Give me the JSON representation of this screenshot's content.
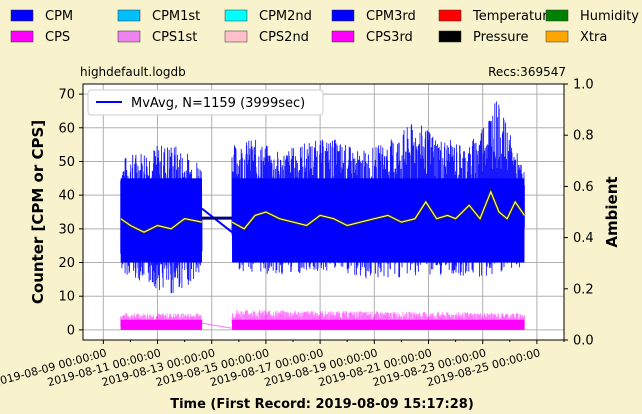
{
  "legend": [
    {
      "label": "CPM",
      "color": "#0000ff"
    },
    {
      "label": "CPM1st",
      "color": "#00bfff"
    },
    {
      "label": "CPM2nd",
      "color": "#00ffff"
    },
    {
      "label": "CPM3rd",
      "color": "#0000ff"
    },
    {
      "label": "Temperature",
      "color": "#ff0000"
    },
    {
      "label": "Humidity",
      "color": "#008000"
    },
    {
      "label": "CPS",
      "color": "#ff00ff"
    },
    {
      "label": "CPS1st",
      "color": "#ee82ee"
    },
    {
      "label": "CPS2nd",
      "color": "#ffc0cb"
    },
    {
      "label": "CPS3rd",
      "color": "#ff00ff"
    },
    {
      "label": "Pressure",
      "color": "#000000"
    },
    {
      "label": "Xtra",
      "color": "#ffa500"
    }
  ],
  "file_label": "highdefault.logdb",
  "recs_label": "Recs:369547",
  "mvavg_legend": "MvAvg, N=1159 (3999sec)",
  "chart_data": {
    "type": "line",
    "xlabel": "Time (First Record: 2019-08-09 15:17:28)",
    "ylabel": "Counter  [CPM or CPS]",
    "ylabel_right": "Ambient",
    "x_ticks": [
      "2019-08-09 00:00:00",
      "2019-08-11 00:00:00",
      "2019-08-13 00:00:00",
      "2019-08-15 00:00:00",
      "2019-08-17 00:00:00",
      "2019-08-19 00:00:00",
      "2019-08-21 00:00:00",
      "2019-08-23 00:00:00",
      "2019-08-25 00:00:00"
    ],
    "x_tick_days": [
      0,
      2,
      4,
      6,
      8,
      10,
      12,
      14,
      16
    ],
    "x_range_days": [
      -0.75,
      17.0
    ],
    "ylim": [
      -3,
      73
    ],
    "y_ticks": [
      0,
      10,
      20,
      30,
      40,
      50,
      60,
      70
    ],
    "ylim_right": [
      0.0,
      1.0
    ],
    "y_ticks_right": [
      "0.0",
      "0.2",
      "0.4",
      "0.6",
      "0.8",
      "1.0"
    ],
    "grid": true,
    "legend_placement": "top-left",
    "segments_days": [
      [
        0.64,
        3.64
      ],
      [
        4.75,
        15.54
      ]
    ],
    "series": [
      {
        "name": "CPM",
        "color": "#0000ff",
        "x_days": [
          0.64,
          1.5,
          2.5,
          3.64,
          4.75,
          5.5,
          6.5,
          7.5,
          8.5,
          9.5,
          10.5,
          11.5,
          12.5,
          13.5,
          14.5,
          15.54
        ],
        "min": [
          17,
          14,
          10,
          16,
          18,
          17,
          16,
          17,
          17,
          15,
          15,
          16,
          16,
          16,
          15,
          19
        ],
        "max": [
          51,
          54,
          56,
          50,
          55,
          57,
          53,
          56,
          57,
          53,
          56,
          62,
          57,
          55,
          69,
          47
        ]
      },
      {
        "name": "CPS",
        "color": "#ff00ff",
        "x_days": [
          0.64,
          3.64,
          4.75,
          15.54
        ],
        "min": [
          0,
          0,
          0,
          0
        ],
        "max": [
          5,
          5,
          6,
          5
        ]
      },
      {
        "name": "MvAvg, N=1159 (3999sec)",
        "color": "#ffff66",
        "x_days": [
          0.64,
          1.0,
          1.5,
          2.0,
          2.5,
          3.0,
          3.64,
          4.75,
          5.2,
          5.6,
          6.0,
          6.5,
          7.0,
          7.5,
          8.0,
          8.5,
          9.0,
          9.5,
          10.0,
          10.5,
          11.0,
          11.5,
          11.9,
          12.3,
          12.7,
          13.0,
          13.5,
          13.9,
          14.3,
          14.6,
          14.9,
          15.2,
          15.54
        ],
        "values": [
          33,
          31,
          29,
          31,
          30,
          33,
          32,
          32,
          30,
          34,
          35,
          33,
          32,
          31,
          34,
          33,
          31,
          32,
          33,
          34,
          32,
          33,
          38,
          33,
          34,
          33,
          37,
          33,
          41,
          35,
          33,
          38,
          34
        ]
      }
    ]
  }
}
